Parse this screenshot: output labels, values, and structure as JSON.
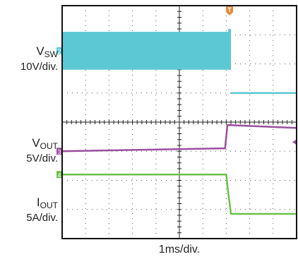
{
  "chart_data": {
    "type": "line",
    "title": "",
    "x_divisions": 10,
    "y_divisions": 8,
    "time_scale_label": "1ms/div.",
    "trigger_marker": "T",
    "grid": "dotted",
    "series": [
      {
        "name": "V_SW",
        "label_main": "V",
        "label_sub": "SW",
        "scale_label": "10V/div.",
        "channel": "2",
        "color": "#5bc8d3",
        "x_div": [
          0,
          7.05,
          7.2,
          10
        ],
        "y_div": [
          2.45,
          2.45,
          1.0,
          1.0
        ],
        "band_height_div": 1.3,
        "band_end_div": 7.2
      },
      {
        "name": "V_OUT",
        "label_main": "V",
        "label_sub": "OUT",
        "scale_label": "5V/div.",
        "channel": "3",
        "color": "#9b4fa0",
        "x_div": [
          0,
          6.95,
          7.05,
          10
        ],
        "y_div": [
          -1.0,
          -0.9,
          -0.1,
          -0.2
        ]
      },
      {
        "name": "I_OUT",
        "label_main": "I",
        "label_sub": "OUT",
        "scale_label": "5A/div.",
        "channel": "4",
        "color": "#6cc04a",
        "x_div": [
          0,
          7.0,
          7.08,
          7.2,
          10
        ],
        "y_div": [
          -1.8,
          -1.8,
          -2.4,
          -3.15,
          -3.15
        ]
      }
    ]
  }
}
